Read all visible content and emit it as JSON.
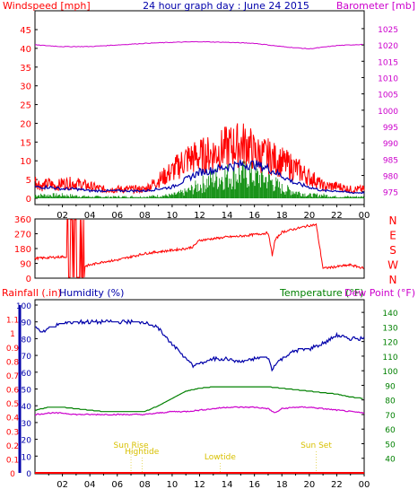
{
  "title": "24 hour graph day : June 24 2015",
  "colors": {
    "red": "#ff0000",
    "blue": "#0000aa",
    "green": "#008000",
    "magenta": "#cc00cc",
    "black": "#000000",
    "orange": "#d8c000",
    "gust_fill": "#ff0000",
    "avg_fill": "#008800"
  },
  "chart_data": [
    {
      "type": "line",
      "name": "wind_and_pressure",
      "left_axis_label": "Windspeed [mph]",
      "right_axis_label": "Barometer [mb]",
      "x_tick_labels": [
        "02",
        "04",
        "06",
        "08",
        "10",
        "12",
        "14",
        "16",
        "18",
        "20",
        "22",
        "00"
      ],
      "x_range_hours": [
        0,
        24
      ],
      "left_ticks": [
        "0",
        "5",
        "10",
        "15",
        "20",
        "25",
        "30",
        "35",
        "40",
        "45"
      ],
      "left_ylim": [
        0,
        45
      ],
      "right_ticks": [
        "975",
        "980",
        "985",
        "990",
        "995",
        "1000",
        "1005",
        "1010",
        "1015",
        "1020",
        "1025"
      ],
      "right_ylim": [
        973,
        1028
      ],
      "series": [
        {
          "key": "gust",
          "color": "red",
          "hours": [
            0,
            0.5,
            1,
            1.5,
            2,
            3,
            4,
            5,
            6,
            7,
            8,
            9,
            10,
            11,
            12,
            13,
            14,
            15,
            15.5,
            16,
            17,
            18,
            19,
            20,
            20.5,
            21,
            22,
            23,
            24
          ],
          "values": [
            6,
            4,
            5,
            4,
            5,
            5,
            4,
            3,
            3,
            3,
            3,
            6,
            9,
            13,
            14,
            15,
            17,
            18,
            18,
            15,
            14,
            12,
            10,
            7,
            6,
            4,
            4,
            3,
            3
          ]
        },
        {
          "key": "average",
          "color": "blue",
          "hours": [
            0,
            1,
            2,
            3,
            4,
            5,
            6,
            7,
            8,
            9,
            10,
            11,
            12,
            13,
            14,
            15,
            16,
            17,
            18,
            19,
            20,
            21,
            22,
            23,
            24
          ],
          "values": [
            3,
            3,
            2.5,
            2.5,
            2,
            2,
            2,
            2,
            2,
            2.5,
            3,
            5,
            7,
            7.5,
            8.5,
            9,
            9,
            8,
            6,
            4,
            3,
            2,
            2,
            1.5,
            1.5
          ]
        },
        {
          "key": "wind_direction_bars",
          "color": "green",
          "hours": [
            0,
            2,
            4,
            6,
            8,
            10,
            11,
            12,
            13,
            14,
            15,
            16,
            17,
            18,
            19,
            20,
            21,
            22,
            24
          ],
          "values": [
            1,
            1,
            0.5,
            0.5,
            0.5,
            1,
            2,
            4,
            6,
            7,
            7.5,
            7,
            6,
            3,
            2,
            1,
            1,
            0.5,
            0.5
          ]
        },
        {
          "key": "barometer",
          "color": "magenta",
          "hours": [
            0,
            2,
            4,
            6,
            8,
            10,
            12,
            14,
            16,
            18,
            20,
            22,
            24
          ],
          "values": [
            1020,
            1019.5,
            1019.5,
            1020,
            1020.5,
            1020.8,
            1021,
            1020.8,
            1020.5,
            1019.5,
            1018.8,
            1019.8,
            1020.2
          ]
        }
      ]
    },
    {
      "type": "line",
      "name": "wind_direction",
      "left_ticks": [
        "0",
        "90",
        "180",
        "270",
        "360"
      ],
      "left_ylim": [
        0,
        360
      ],
      "right_labels": [
        "N",
        "W",
        "S",
        "E",
        "N"
      ],
      "series": [
        {
          "key": "direction",
          "color": "red",
          "hours": [
            0,
            1,
            2,
            2.5,
            3,
            4,
            5,
            6,
            7,
            8,
            9,
            10,
            11,
            11.5,
            12,
            13,
            14,
            15,
            16,
            17,
            17.3,
            17.5,
            18,
            19,
            20,
            20.5,
            21,
            22,
            23,
            24
          ],
          "values": [
            120,
            125,
            130,
            130,
            60,
            80,
            100,
            110,
            130,
            150,
            160,
            170,
            180,
            190,
            230,
            240,
            250,
            255,
            265,
            275,
            140,
            230,
            280,
            300,
            320,
            325,
            60,
            70,
            80,
            60
          ]
        }
      ]
    },
    {
      "type": "line",
      "name": "humidity_temperature",
      "left_axis_label_a": "Rainfall (.in)",
      "left_axis_label_b": "Humidity (%)",
      "right_axis_label_a": "Temperature (°F)",
      "right_axis_label_b": "Dew Point (°F)",
      "x_tick_labels": [
        "02",
        "04",
        "06",
        "08",
        "10",
        "12",
        "14",
        "16",
        "18",
        "20",
        "22",
        "00"
      ],
      "rain_ticks": [
        "0",
        "0.1",
        "0.2",
        "0.3",
        "0.4",
        "0.5",
        "0.6",
        "0.7",
        "0.8",
        "0.9",
        "1",
        "1.1"
      ],
      "rain_ylim": [
        0,
        1.2
      ],
      "humidity_ticks": [
        "0",
        "10",
        "20",
        "30",
        "40",
        "50",
        "60",
        "70",
        "80",
        "90",
        "100"
      ],
      "humidity_ylim": [
        0,
        100
      ],
      "temp_ticks": [
        "40",
        "50",
        "60",
        "70",
        "80",
        "90",
        "100",
        "110",
        "120",
        "130",
        "140"
      ],
      "temp_ylim": [
        30,
        145
      ],
      "annotations": [
        {
          "label": "Sun Rise",
          "hour": 7
        },
        {
          "label": "Hightide",
          "hour": 7.8
        },
        {
          "label": "Lowtide",
          "hour": 13.5
        },
        {
          "label": "Sun Set",
          "hour": 20.5
        }
      ],
      "series": [
        {
          "key": "humidity",
          "color": "blue",
          "hours": [
            0,
            0.5,
            1,
            2,
            3,
            4,
            5,
            6,
            7,
            8,
            9,
            10,
            11,
            11.5,
            12,
            13,
            14,
            15,
            16,
            17,
            17.3,
            17.5,
            18,
            19,
            20,
            21,
            22,
            23,
            24
          ],
          "values": [
            87,
            84,
            86,
            89,
            90,
            90,
            90,
            90,
            90,
            90,
            86,
            77,
            68,
            64,
            65,
            68,
            68,
            66,
            68,
            69,
            61,
            65,
            68,
            73,
            74,
            77,
            82,
            80,
            80
          ]
        },
        {
          "key": "temperature",
          "color": "green",
          "hours": [
            0,
            1,
            2,
            3,
            4,
            5,
            6,
            7,
            8,
            9,
            10,
            11,
            12,
            13,
            14,
            15,
            16,
            17,
            18,
            19,
            20,
            21,
            22,
            23,
            24
          ],
          "values": [
            73,
            75,
            75,
            74,
            73,
            72,
            72,
            72,
            72,
            76,
            81,
            86,
            88,
            89,
            89,
            89,
            89,
            89,
            88,
            87,
            86,
            85,
            84,
            82,
            81
          ]
        },
        {
          "key": "dew_point",
          "color": "magenta",
          "hours": [
            0,
            1,
            2,
            3,
            4,
            5,
            6,
            7,
            8,
            9,
            10,
            11,
            12,
            13,
            14,
            15,
            16,
            17,
            17.5,
            18,
            19,
            20,
            21,
            22,
            23,
            24
          ],
          "values": [
            70,
            71,
            71,
            70,
            70,
            70,
            70,
            70,
            70,
            71,
            72,
            72,
            73,
            74,
            75,
            75,
            75,
            74,
            71,
            74,
            75,
            75,
            74,
            73,
            72,
            71
          ]
        },
        {
          "key": "rainfall",
          "color": "red",
          "hours": [
            0,
            24
          ],
          "values": [
            0,
            0
          ]
        }
      ]
    }
  ]
}
